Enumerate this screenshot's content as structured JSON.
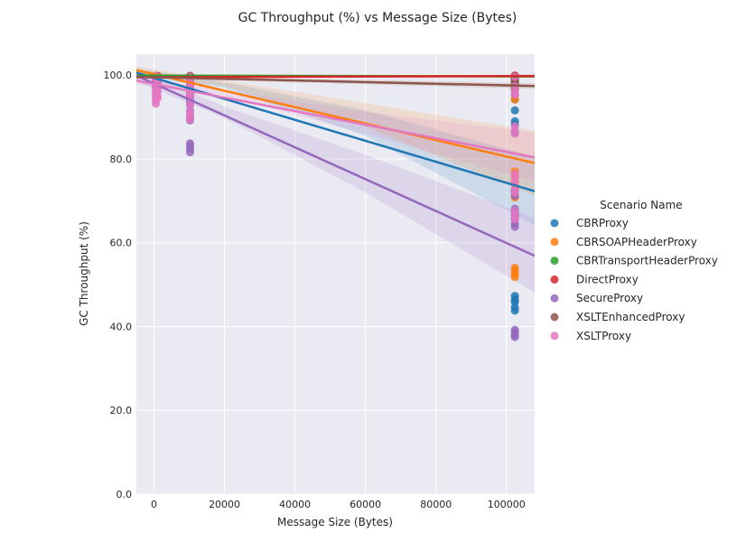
{
  "chart_data": {
    "type": "scatter",
    "title": "GC Throughput (%) vs Message Size (Bytes)",
    "xlabel": "Message Size (Bytes)",
    "ylabel": "GC Throughput (%)",
    "xlim": [
      -5000,
      108000
    ],
    "ylim": [
      0,
      105
    ],
    "xticks": [
      0,
      20000,
      40000,
      60000,
      80000,
      100000
    ],
    "xtick_labels": [
      "0",
      "20000",
      "40000",
      "60000",
      "80000",
      "100000"
    ],
    "yticks": [
      0,
      20,
      40,
      60,
      80,
      100
    ],
    "ytick_labels": [
      "0.0",
      "20.0",
      "40.0",
      "60.0",
      "80.0",
      "100.0"
    ],
    "grid": true,
    "legend_title": "Scenario Name",
    "legend_position": "right",
    "series": [
      {
        "name": "CBRProxy",
        "color": "#1f77b4",
        "points": [
          [
            500,
            99.7
          ],
          [
            500,
            99.2
          ],
          [
            500,
            98.8
          ],
          [
            500,
            98.3
          ],
          [
            500,
            97.8
          ],
          [
            500,
            97.2
          ],
          [
            1000,
            99.5
          ],
          [
            1000,
            98.6
          ],
          [
            1000,
            97.9
          ],
          [
            1000,
            97.1
          ],
          [
            10240,
            99.6
          ],
          [
            10240,
            99.0
          ],
          [
            10240,
            98.2
          ],
          [
            10240,
            97.5
          ],
          [
            10240,
            96.6
          ],
          [
            10240,
            95.6
          ],
          [
            10240,
            94.8
          ],
          [
            10240,
            93.8
          ],
          [
            102400,
            99.8
          ],
          [
            102400,
            99.1
          ],
          [
            102400,
            98.1
          ],
          [
            102400,
            96.5
          ],
          [
            102400,
            94.2
          ],
          [
            102400,
            91.6
          ],
          [
            102400,
            89.0
          ],
          [
            102400,
            88.2
          ],
          [
            102400,
            86.5
          ],
          [
            102400,
            72.5
          ],
          [
            102400,
            67.5
          ],
          [
            102400,
            66.8
          ],
          [
            102400,
            65.9
          ],
          [
            102400,
            47.3
          ],
          [
            102400,
            46.5
          ],
          [
            102400,
            45.9
          ],
          [
            102400,
            44.6
          ],
          [
            102400,
            43.8
          ]
        ],
        "fit": [
          [
            -5000,
            100.6
          ],
          [
            108000,
            72.3
          ]
        ],
        "ci_upper": [
          [
            -5000,
            101.6
          ],
          [
            20000,
            98.3
          ],
          [
            60000,
            91.6
          ],
          [
            108000,
            80.5
          ]
        ],
        "ci_lower": [
          [
            -5000,
            99.6
          ],
          [
            20000,
            97.0
          ],
          [
            60000,
            85.5
          ],
          [
            108000,
            64.2
          ]
        ]
      },
      {
        "name": "CBRSOAPHeaderProxy",
        "color": "#ff7f0e",
        "points": [
          [
            500,
            99.6
          ],
          [
            500,
            98.9
          ],
          [
            500,
            98.0
          ],
          [
            500,
            97.2
          ],
          [
            1000,
            99.4
          ],
          [
            1000,
            98.5
          ],
          [
            1000,
            97.4
          ],
          [
            10240,
            99.5
          ],
          [
            10240,
            98.8
          ],
          [
            10240,
            98.0
          ],
          [
            10240,
            97.2
          ],
          [
            10240,
            96.4
          ],
          [
            102400,
            99.7
          ],
          [
            102400,
            99.0
          ],
          [
            102400,
            98.0
          ],
          [
            102400,
            96.8
          ],
          [
            102400,
            95.2
          ],
          [
            102400,
            94.2
          ],
          [
            102400,
            77.0
          ],
          [
            102400,
            75.8
          ],
          [
            102400,
            74.6
          ],
          [
            102400,
            72.6
          ],
          [
            102400,
            71.5
          ],
          [
            102400,
            70.8
          ],
          [
            102400,
            54.0
          ],
          [
            102400,
            53.2
          ],
          [
            102400,
            52.6
          ],
          [
            102400,
            51.8
          ]
        ],
        "fit": [
          [
            -5000,
            101.2
          ],
          [
            108000,
            79.0
          ]
        ],
        "ci_upper": [
          [
            -5000,
            102.0
          ],
          [
            20000,
            98.7
          ],
          [
            60000,
            93.3
          ],
          [
            108000,
            86.7
          ]
        ],
        "ci_lower": [
          [
            -5000,
            100.2
          ],
          [
            20000,
            97.3
          ],
          [
            60000,
            87.6
          ],
          [
            108000,
            71.2
          ]
        ]
      },
      {
        "name": "CBRTransportHeaderProxy",
        "color": "#2ca02c",
        "points": [
          [
            500,
            99.8
          ],
          [
            500,
            99.5
          ],
          [
            1000,
            99.7
          ],
          [
            1000,
            99.4
          ],
          [
            10240,
            99.8
          ],
          [
            10240,
            99.5
          ],
          [
            10240,
            99.2
          ],
          [
            102400,
            99.8
          ],
          [
            102400,
            99.5
          ],
          [
            102400,
            99.1
          ],
          [
            102400,
            98.8
          ]
        ],
        "fit": [
          [
            -5000,
            99.9
          ],
          [
            108000,
            99.7
          ]
        ],
        "ci_upper": [
          [
            -5000,
            100.1
          ],
          [
            108000,
            100.0
          ]
        ],
        "ci_lower": [
          [
            -5000,
            99.7
          ],
          [
            108000,
            99.4
          ]
        ]
      },
      {
        "name": "DirectProxy",
        "color": "#d62728",
        "points": [
          [
            500,
            99.8
          ],
          [
            500,
            99.6
          ],
          [
            1000,
            99.8
          ],
          [
            1000,
            99.5
          ],
          [
            10240,
            99.8
          ],
          [
            10240,
            99.6
          ],
          [
            10240,
            99.4
          ],
          [
            102400,
            99.9
          ],
          [
            102400,
            99.7
          ],
          [
            102400,
            99.5
          ],
          [
            102400,
            99.3
          ],
          [
            102400,
            99.0
          ]
        ],
        "fit": [
          [
            -5000,
            99.5
          ],
          [
            108000,
            99.8
          ]
        ],
        "ci_upper": [
          [
            -5000,
            99.7
          ],
          [
            108000,
            100.1
          ]
        ],
        "ci_lower": [
          [
            -5000,
            99.3
          ],
          [
            108000,
            99.5
          ]
        ]
      },
      {
        "name": "SecureProxy",
        "color": "#9467bd",
        "points": [
          [
            500,
            99.5
          ],
          [
            500,
            98.9
          ],
          [
            500,
            98.3
          ],
          [
            500,
            97.7
          ],
          [
            1000,
            99.3
          ],
          [
            1000,
            98.2
          ],
          [
            10240,
            99.2
          ],
          [
            10240,
            98.0
          ],
          [
            10240,
            96.7
          ],
          [
            10240,
            95.3
          ],
          [
            10240,
            94.3
          ],
          [
            10240,
            92.9
          ],
          [
            10240,
            91.3
          ],
          [
            10240,
            90.1
          ],
          [
            10240,
            89.2
          ],
          [
            10240,
            83.7
          ],
          [
            10240,
            83.1
          ],
          [
            10240,
            82.4
          ],
          [
            10240,
            81.6
          ],
          [
            102400,
            99.4
          ],
          [
            102400,
            97.6
          ],
          [
            102400,
            95.4
          ],
          [
            102400,
            72.1
          ],
          [
            102400,
            71.2
          ],
          [
            102400,
            68.1
          ],
          [
            102400,
            66.6
          ],
          [
            102400,
            65.7
          ],
          [
            102400,
            64.6
          ],
          [
            102400,
            63.8
          ],
          [
            102400,
            39.2
          ],
          [
            102400,
            38.6
          ],
          [
            102400,
            38.0
          ],
          [
            102400,
            37.5
          ]
        ],
        "fit": [
          [
            -5000,
            99.9
          ],
          [
            108000,
            56.9
          ]
        ],
        "ci_upper": [
          [
            -5000,
            101.4
          ],
          [
            20000,
            92.5
          ],
          [
            60000,
            81.0
          ],
          [
            108000,
            65.9
          ]
        ],
        "ci_lower": [
          [
            -5000,
            98.4
          ],
          [
            20000,
            89.8
          ],
          [
            60000,
            72.0
          ],
          [
            108000,
            48.1
          ]
        ]
      },
      {
        "name": "XSLTEnhancedProxy",
        "color": "#8c564b",
        "points": [
          [
            500,
            99.7
          ],
          [
            500,
            99.3
          ],
          [
            1000,
            99.6
          ],
          [
            1000,
            99.1
          ],
          [
            10240,
            99.8
          ],
          [
            10240,
            99.5
          ],
          [
            10240,
            99.1
          ],
          [
            10240,
            98.6
          ],
          [
            102400,
            99.7
          ],
          [
            102400,
            99.2
          ],
          [
            102400,
            98.6
          ],
          [
            102400,
            98.0
          ],
          [
            102400,
            97.5
          ],
          [
            102400,
            97.0
          ]
        ],
        "fit": [
          [
            -5000,
            99.6
          ],
          [
            108000,
            97.4
          ]
        ],
        "ci_upper": [
          [
            -5000,
            99.9
          ],
          [
            108000,
            98.1
          ]
        ],
        "ci_lower": [
          [
            -5000,
            99.3
          ],
          [
            108000,
            96.7
          ]
        ]
      },
      {
        "name": "XSLTProxy",
        "color": "#e377c2",
        "points": [
          [
            500,
            99.8
          ],
          [
            500,
            99.3
          ],
          [
            500,
            98.6
          ],
          [
            500,
            97.9
          ],
          [
            500,
            97.2
          ],
          [
            500,
            96.4
          ],
          [
            500,
            95.6
          ],
          [
            500,
            94.8
          ],
          [
            500,
            94.0
          ],
          [
            500,
            93.2
          ],
          [
            1000,
            99.5
          ],
          [
            1000,
            98.7
          ],
          [
            1000,
            97.9
          ],
          [
            1000,
            97.0
          ],
          [
            1000,
            96.1
          ],
          [
            1000,
            95.2
          ],
          [
            1000,
            94.5
          ],
          [
            10240,
            99.6
          ],
          [
            10240,
            98.8
          ],
          [
            10240,
            98.0
          ],
          [
            10240,
            97.2
          ],
          [
            10240,
            96.3
          ],
          [
            10240,
            95.4
          ],
          [
            10240,
            94.6
          ],
          [
            10240,
            93.2
          ],
          [
            10240,
            91.6
          ],
          [
            10240,
            90.4
          ],
          [
            10240,
            89.5
          ],
          [
            102400,
            99.6
          ],
          [
            102400,
            97.4
          ],
          [
            102400,
            96.2
          ],
          [
            102400,
            95.4
          ],
          [
            102400,
            87.8
          ],
          [
            102400,
            86.8
          ],
          [
            102400,
            86.0
          ],
          [
            102400,
            76.4
          ],
          [
            102400,
            75.2
          ],
          [
            102400,
            74.2
          ],
          [
            102400,
            73.0
          ],
          [
            102400,
            72.0
          ],
          [
            102400,
            67.6
          ],
          [
            102400,
            66.6
          ],
          [
            102400,
            65.6
          ]
        ],
        "fit": [
          [
            -5000,
            98.7
          ],
          [
            108000,
            80.4
          ]
        ],
        "ci_upper": [
          [
            -5000,
            99.6
          ],
          [
            20000,
            96.5
          ],
          [
            60000,
            91.2
          ],
          [
            108000,
            86.3
          ]
        ],
        "ci_lower": [
          [
            -5000,
            97.8
          ],
          [
            20000,
            95.1
          ],
          [
            60000,
            86.0
          ],
          [
            108000,
            74.6
          ]
        ]
      }
    ]
  }
}
